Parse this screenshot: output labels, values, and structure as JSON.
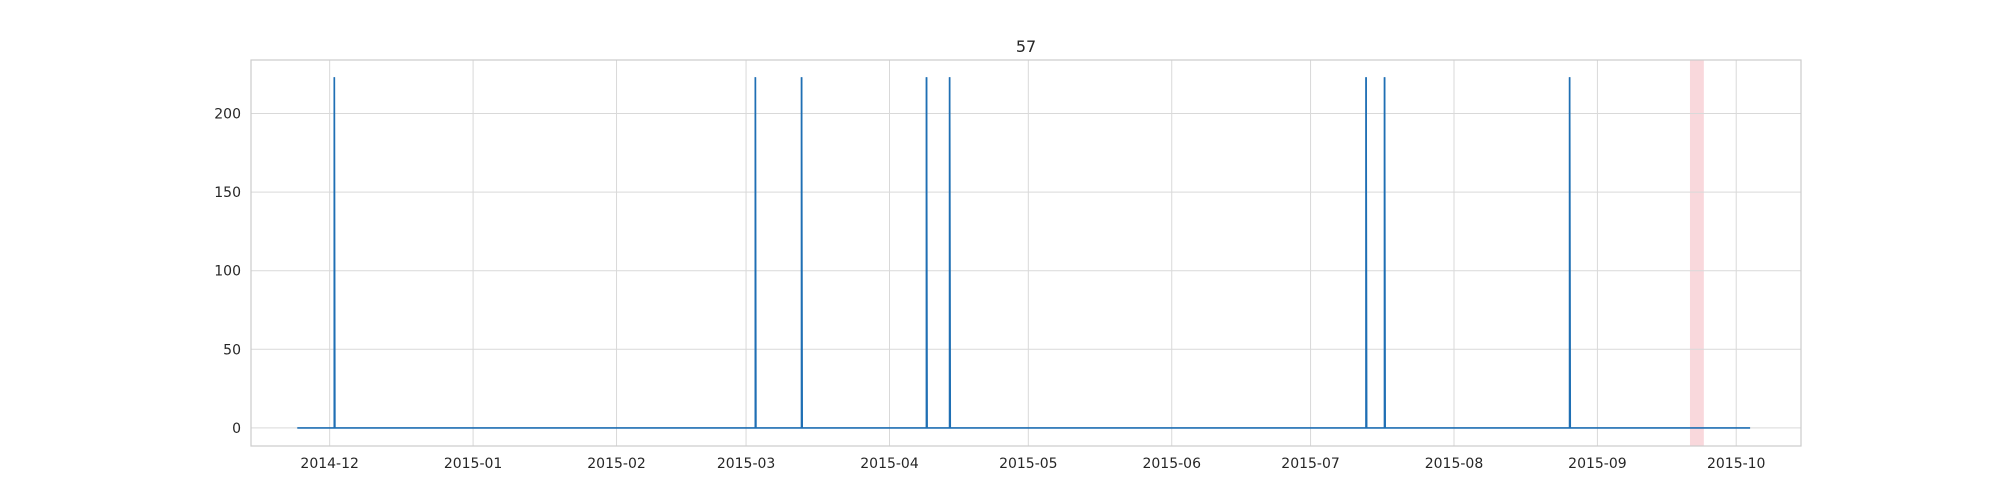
{
  "chart_data": {
    "type": "line",
    "title": "57",
    "xlabel": "",
    "ylabel": "",
    "x_axis_type": "date",
    "xlim": [
      "2014-11-14",
      "2015-10-15"
    ],
    "ylim": [
      -11.5,
      234
    ],
    "x_ticks": [
      "2014-12",
      "2015-01",
      "2015-02",
      "2015-03",
      "2015-04",
      "2015-05",
      "2015-06",
      "2015-07",
      "2015-08",
      "2015-09",
      "2015-10"
    ],
    "y_ticks": [
      0,
      50,
      100,
      150,
      200
    ],
    "grid": true,
    "legend": "none",
    "series": [
      {
        "color": "#1f6fb4",
        "baseline": 0,
        "start": "2014-11-24",
        "end": "2015-10-04",
        "spikes": [
          {
            "date": "2014-12-02",
            "value": 223
          },
          {
            "date": "2015-03-03",
            "value": 223
          },
          {
            "date": "2015-03-13",
            "value": 223
          },
          {
            "date": "2015-04-09",
            "value": 223
          },
          {
            "date": "2015-04-14",
            "value": 223
          },
          {
            "date": "2015-07-13",
            "value": 223
          },
          {
            "date": "2015-07-17",
            "value": 223
          },
          {
            "date": "2015-08-26",
            "value": 223
          }
        ]
      }
    ],
    "highlight": {
      "start": "2015-09-21",
      "end": "2015-09-24",
      "color": "#f9d8dc"
    }
  }
}
